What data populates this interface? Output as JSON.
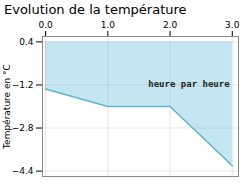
{
  "chart_data": {
    "type": "area",
    "title": "Evolution de la température",
    "ylabel": "Température en °C",
    "x": [
      0,
      1,
      2,
      3
    ],
    "values": [
      -1.35,
      -2.0,
      -2.0,
      -4.2
    ],
    "fill_top": 0.4,
    "color": "#5ab4d4",
    "xlim": [
      -0.05,
      3.1
    ],
    "ylim": [
      -4.6,
      0.6
    ],
    "xticks": [
      0,
      1,
      2,
      3
    ],
    "yticks": [
      0.4,
      -1.2,
      -2.8,
      -4.4
    ],
    "grid": true,
    "annotations": [
      {
        "text": "heure par heure",
        "x": 1.65,
        "y": -1.05
      }
    ]
  }
}
